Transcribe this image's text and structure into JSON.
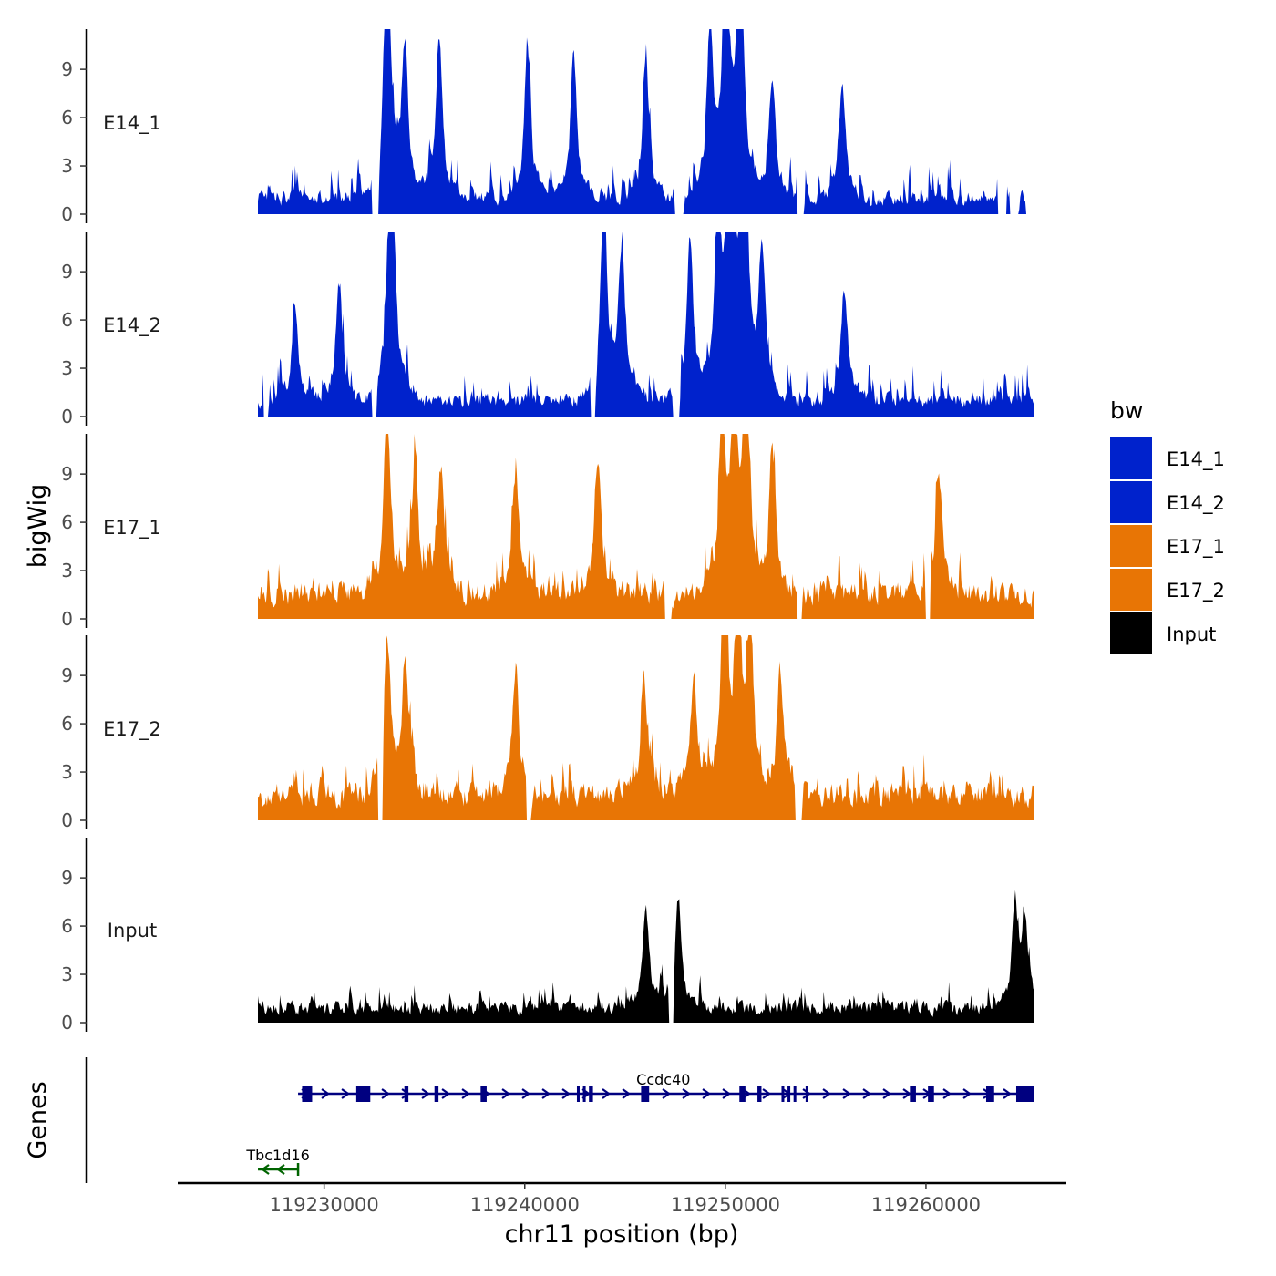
{
  "chart_data": {
    "type": "area",
    "y_axis_title": "bigWig",
    "x_axis_title": "chr11 position (bp)",
    "genes_axis_title": "Genes",
    "xlim": [
      119222700,
      119267000
    ],
    "x_ticks": [
      119230000,
      119240000,
      119250000,
      119260000
    ],
    "x_tick_labels": [
      "119230000",
      "119240000",
      "119250000",
      "119260000"
    ],
    "ylim": [
      0,
      11.5
    ],
    "y_ticks": [
      0,
      3,
      6,
      9
    ],
    "y_tick_labels": [
      "0",
      "3",
      "6",
      "9"
    ],
    "track_range": [
      119226700,
      119265400
    ],
    "legend": {
      "title": "bw",
      "position": "right",
      "entries": [
        {
          "label": "E14_1",
          "color": "#0022cc"
        },
        {
          "label": "E14_2",
          "color": "#0022cc"
        },
        {
          "label": "E17_1",
          "color": "#e87505"
        },
        {
          "label": "E17_2",
          "color": "#e87505"
        },
        {
          "label": "Input",
          "color": "#000000"
        }
      ]
    },
    "tracks": [
      {
        "name": "E14_1",
        "color": "#0022cc",
        "seed": 101,
        "baseline": 1.0,
        "noise": 1.6,
        "peaks": [
          {
            "pos": 119233100,
            "height": 8.2
          },
          {
            "pos": 119234000,
            "height": 4.2
          },
          {
            "pos": 119235700,
            "height": 4.5
          },
          {
            "pos": 119240100,
            "height": 4.2
          },
          {
            "pos": 119242400,
            "height": 4.0
          },
          {
            "pos": 119246000,
            "height": 3.6
          },
          {
            "pos": 119249200,
            "height": 4.6
          },
          {
            "pos": 119250000,
            "height": 7.9
          },
          {
            "pos": 119250700,
            "height": 7.9
          },
          {
            "pos": 119252300,
            "height": 3.5
          },
          {
            "pos": 119255800,
            "height": 3.2
          }
        ],
        "gaps": [
          [
            119232400,
            119232700
          ],
          [
            119247500,
            119247900
          ],
          [
            119253600,
            119253900
          ],
          [
            119263600,
            119264000
          ],
          [
            119264200,
            119264600
          ],
          [
            119265000,
            119265400
          ]
        ]
      },
      {
        "name": "E14_2",
        "color": "#0022cc",
        "seed": 202,
        "baseline": 1.0,
        "noise": 1.6,
        "peaks": [
          {
            "pos": 119233300,
            "height": 8.8
          },
          {
            "pos": 119228500,
            "height": 2.7
          },
          {
            "pos": 119230700,
            "height": 3.3
          },
          {
            "pos": 119243900,
            "height": 5.4
          },
          {
            "pos": 119244800,
            "height": 4.2
          },
          {
            "pos": 119248200,
            "height": 4.6
          },
          {
            "pos": 119249600,
            "height": 4.7
          },
          {
            "pos": 119250200,
            "height": 10.9
          },
          {
            "pos": 119250900,
            "height": 9.0
          },
          {
            "pos": 119251800,
            "height": 4.2
          },
          {
            "pos": 119255900,
            "height": 3.2
          }
        ],
        "gaps": [
          [
            119227000,
            119227200
          ],
          [
            119232400,
            119232600
          ],
          [
            119243300,
            119243500
          ],
          [
            119247400,
            119247700
          ]
        ]
      },
      {
        "name": "E17_1",
        "color": "#e87505",
        "seed": 303,
        "baseline": 1.6,
        "noise": 1.6,
        "peaks": [
          {
            "pos": 119233100,
            "height": 5.0
          },
          {
            "pos": 119234500,
            "height": 3.8
          },
          {
            "pos": 119235800,
            "height": 3.6
          },
          {
            "pos": 119239500,
            "height": 3.5
          },
          {
            "pos": 119243600,
            "height": 3.8
          },
          {
            "pos": 119249800,
            "height": 4.9
          },
          {
            "pos": 119250400,
            "height": 5.6
          },
          {
            "pos": 119251000,
            "height": 6.1
          },
          {
            "pos": 119252300,
            "height": 4.1
          },
          {
            "pos": 119260600,
            "height": 3.6
          }
        ],
        "gaps": [
          [
            119247000,
            119247300
          ],
          [
            119253600,
            119253800
          ],
          [
            119260000,
            119260200
          ]
        ]
      },
      {
        "name": "E17_2",
        "color": "#e87505",
        "seed": 404,
        "baseline": 1.6,
        "noise": 1.6,
        "peaks": [
          {
            "pos": 119233100,
            "height": 4.5
          },
          {
            "pos": 119234000,
            "height": 3.6
          },
          {
            "pos": 119239500,
            "height": 3.7
          },
          {
            "pos": 119245900,
            "height": 3.5
          },
          {
            "pos": 119248400,
            "height": 3.5
          },
          {
            "pos": 119249900,
            "height": 6.4
          },
          {
            "pos": 119250600,
            "height": 5.5
          },
          {
            "pos": 119251200,
            "height": 4.6
          },
          {
            "pos": 119252700,
            "height": 3.6
          }
        ],
        "gaps": [
          [
            119232700,
            119232900
          ],
          [
            119240100,
            119240300
          ],
          [
            119253500,
            119253800
          ]
        ]
      },
      {
        "name": "Input",
        "color": "#000000",
        "seed": 505,
        "baseline": 0.9,
        "noise": 1.1,
        "peaks": [
          {
            "pos": 119246000,
            "height": 2.9
          },
          {
            "pos": 119247600,
            "height": 3.1
          },
          {
            "pos": 119264400,
            "height": 2.5
          },
          {
            "pos": 119264900,
            "height": 2.4
          }
        ],
        "gaps": [
          [
            119247200,
            119247400
          ]
        ]
      }
    ],
    "genes": [
      {
        "name": "Ccdc40",
        "strand": "+",
        "color": "#000080",
        "start": 119228700,
        "end": 119265400,
        "row": 1,
        "exons": [
          [
            119228900,
            119229400
          ],
          [
            119231600,
            119232300
          ],
          [
            119234000,
            119234200
          ],
          [
            119235500,
            119235700
          ],
          [
            119237800,
            119238100
          ],
          [
            119242600,
            119242700
          ],
          [
            119242900,
            119243000
          ],
          [
            119243200,
            119243400
          ],
          [
            119245800,
            119246200
          ],
          [
            119250700,
            119251000
          ],
          [
            119251600,
            119251800
          ],
          [
            119252800,
            119252900
          ],
          [
            119253100,
            119253200
          ],
          [
            119253400,
            119253500
          ],
          [
            119254000,
            119254100
          ],
          [
            119259200,
            119259500
          ],
          [
            119260100,
            119260400
          ],
          [
            119263000,
            119263400
          ],
          [
            119264500,
            119265400
          ]
        ]
      },
      {
        "name": "Tbc1d16",
        "strand": "-",
        "color": "#006400",
        "start": 119226700,
        "end": 119228700,
        "row": 2,
        "exons": []
      }
    ]
  }
}
